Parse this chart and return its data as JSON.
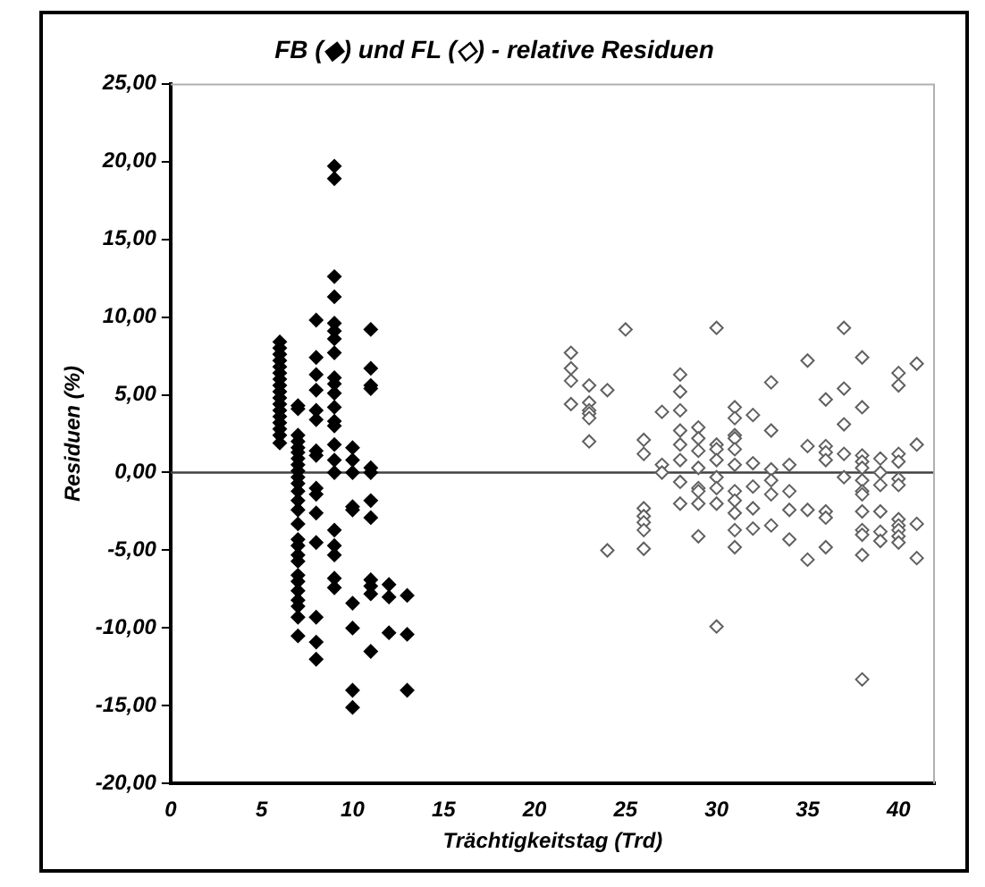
{
  "chart_data": {
    "type": "scatter",
    "title": "FB (◆) und FL (◇) - relative Residuen",
    "xlabel": "Trächtigkeitstag (Trd)",
    "ylabel": "Residuen (%)",
    "marker": "diamond",
    "grid": false,
    "xlim": [
      0,
      42
    ],
    "xticks": [
      0,
      5,
      10,
      15,
      20,
      25,
      30,
      35,
      40
    ],
    "ylim": [
      -20,
      25
    ],
    "yticks": [
      {
        "value": -20,
        "label": "-20,00"
      },
      {
        "value": -15,
        "label": "-15,00"
      },
      {
        "value": -10,
        "label": "-10,00"
      },
      {
        "value": -5,
        "label": "-5,00"
      },
      {
        "value": 0,
        "label": "0,00"
      },
      {
        "value": 5,
        "label": "5,00"
      },
      {
        "value": 10,
        "label": "10,00"
      },
      {
        "value": 15,
        "label": "15,00"
      },
      {
        "value": 20,
        "label": "20,00"
      },
      {
        "value": 25,
        "label": "25,00"
      }
    ],
    "ref_lines": [
      {
        "axis": "y",
        "value": 0,
        "label": null,
        "color": "#404040"
      }
    ],
    "series": [
      {
        "color": "#000000",
        "x": [
          6,
          6,
          6,
          6,
          6,
          6,
          6,
          6,
          6,
          6,
          6,
          6,
          6,
          6,
          6,
          6,
          6,
          7,
          7,
          7,
          7,
          7,
          7,
          7,
          7,
          7,
          7,
          7,
          7,
          7,
          7,
          7,
          7,
          7,
          7,
          7,
          7,
          7,
          7,
          7,
          7,
          7,
          7,
          8,
          8,
          8,
          8,
          8,
          8,
          8,
          8,
          8,
          8,
          8,
          8,
          8,
          8,
          8,
          9,
          9,
          9,
          9,
          9,
          9,
          9,
          9,
          9,
          9,
          9,
          9,
          9,
          9,
          9,
          9,
          9,
          9,
          9,
          9,
          9,
          9,
          10,
          10,
          10,
          10,
          10,
          10,
          10,
          10,
          10,
          11,
          11,
          11,
          11,
          11,
          11,
          11,
          11,
          11,
          11,
          11,
          11,
          12,
          12,
          12,
          13,
          13,
          13
        ],
        "values": [
          8.4,
          8.0,
          7.6,
          7.2,
          6.8,
          6.4,
          6.0,
          5.6,
          5.2,
          4.8,
          4.4,
          4.0,
          3.6,
          3.2,
          2.8,
          2.4,
          1.9,
          4.3,
          4.1,
          2.4,
          2.0,
          1.6,
          1.3,
          0.9,
          0.5,
          0.1,
          -0.3,
          -0.7,
          -1.2,
          -1.8,
          -2.4,
          -3.3,
          -4.3,
          -4.7,
          -5.3,
          -5.7,
          -6.6,
          -7.0,
          -7.6,
          -8.2,
          -8.6,
          -9.3,
          -10.5,
          9.8,
          7.4,
          6.3,
          5.3,
          4.0,
          3.4,
          1.4,
          1.1,
          -1.0,
          -1.4,
          -2.6,
          -4.5,
          -9.3,
          -10.9,
          -12.0,
          19.7,
          18.9,
          12.6,
          11.3,
          9.6,
          9.1,
          8.6,
          7.7,
          6.1,
          5.7,
          5.1,
          4.2,
          3.3,
          3.0,
          1.8,
          0.8,
          0,
          -3.7,
          -4.7,
          -5.3,
          -6.8,
          -7.4,
          1.6,
          0.8,
          0,
          -2.2,
          -2.4,
          -8.4,
          -10.0,
          -14.0,
          -15.1,
          9.2,
          6.7,
          5.6,
          5.4,
          0.3,
          0,
          -1.8,
          -2.9,
          -6.9,
          -7.3,
          -7.8,
          -11.5,
          -7.2,
          -8.0,
          -10.3,
          -7.9,
          -10.4,
          -14.0
        ]
      },
      {
        "color": "#606060",
        "x": [
          22,
          22,
          22,
          22,
          23,
          23,
          23,
          23,
          23,
          23,
          24,
          24,
          25,
          26,
          26,
          26,
          26,
          26,
          26,
          26,
          27,
          27,
          27,
          28,
          28,
          28,
          28,
          28,
          28,
          28,
          28,
          29,
          29,
          29,
          29,
          29,
          29,
          29,
          29,
          30,
          30,
          30,
          30,
          30,
          30,
          30,
          30,
          31,
          31,
          31,
          31,
          31,
          31,
          31,
          31,
          31,
          31,
          31,
          32,
          32,
          32,
          32,
          32,
          33,
          33,
          33,
          33,
          33,
          33,
          34,
          34,
          34,
          34,
          35,
          35,
          35,
          35,
          36,
          36,
          36,
          36,
          36,
          36,
          36,
          37,
          37,
          37,
          37,
          37,
          38,
          38,
          38,
          38,
          38,
          38,
          38,
          38,
          38,
          38,
          38,
          38,
          38,
          39,
          39,
          39,
          39,
          39,
          39,
          40,
          40,
          40,
          40,
          40,
          40,
          40,
          40,
          40,
          40,
          40,
          41,
          41,
          41,
          41
        ],
        "values": [
          7.7,
          6.7,
          5.9,
          4.4,
          5.6,
          4.5,
          4.0,
          3.8,
          3.5,
          2.0,
          5.3,
          -5.0,
          9.2,
          2.1,
          1.2,
          -2.3,
          -2.8,
          -3.2,
          -3.7,
          -4.9,
          3.9,
          0.5,
          0.0,
          6.3,
          5.2,
          4.0,
          2.7,
          1.8,
          0.8,
          -0.6,
          -2.0,
          2.9,
          2.2,
          1.4,
          0.3,
          -1.0,
          -1.2,
          -2.0,
          -4.1,
          9.3,
          1.8,
          1.5,
          0.8,
          -0.3,
          -1.0,
          -2.0,
          -9.9,
          4.2,
          3.5,
          2.4,
          2.2,
          1.5,
          0.5,
          -1.2,
          -1.8,
          -2.6,
          -3.7,
          -4.8,
          3.7,
          0.6,
          -0.9,
          -2.3,
          -3.6,
          5.8,
          2.7,
          0.2,
          -0.5,
          -1.4,
          -3.4,
          0.5,
          -1.2,
          -2.4,
          -4.3,
          7.2,
          1.7,
          -2.4,
          -5.6,
          4.7,
          1.7,
          1.3,
          0.8,
          -2.5,
          -2.9,
          -4.8,
          9.3,
          5.4,
          3.1,
          1.2,
          -0.3,
          7.4,
          4.2,
          1.1,
          0.7,
          0.3,
          -0.5,
          -1.2,
          -1.4,
          -2.5,
          -3.7,
          -4.0,
          -5.3,
          -13.3,
          0.9,
          0.0,
          -0.8,
          -2.5,
          -3.8,
          -4.4,
          6.4,
          5.6,
          1.2,
          0.7,
          -0.4,
          -0.8,
          -3.0,
          -3.4,
          -3.7,
          -4.1,
          -4.5,
          7.0,
          1.8,
          -3.3,
          -5.5
        ]
      }
    ]
  }
}
